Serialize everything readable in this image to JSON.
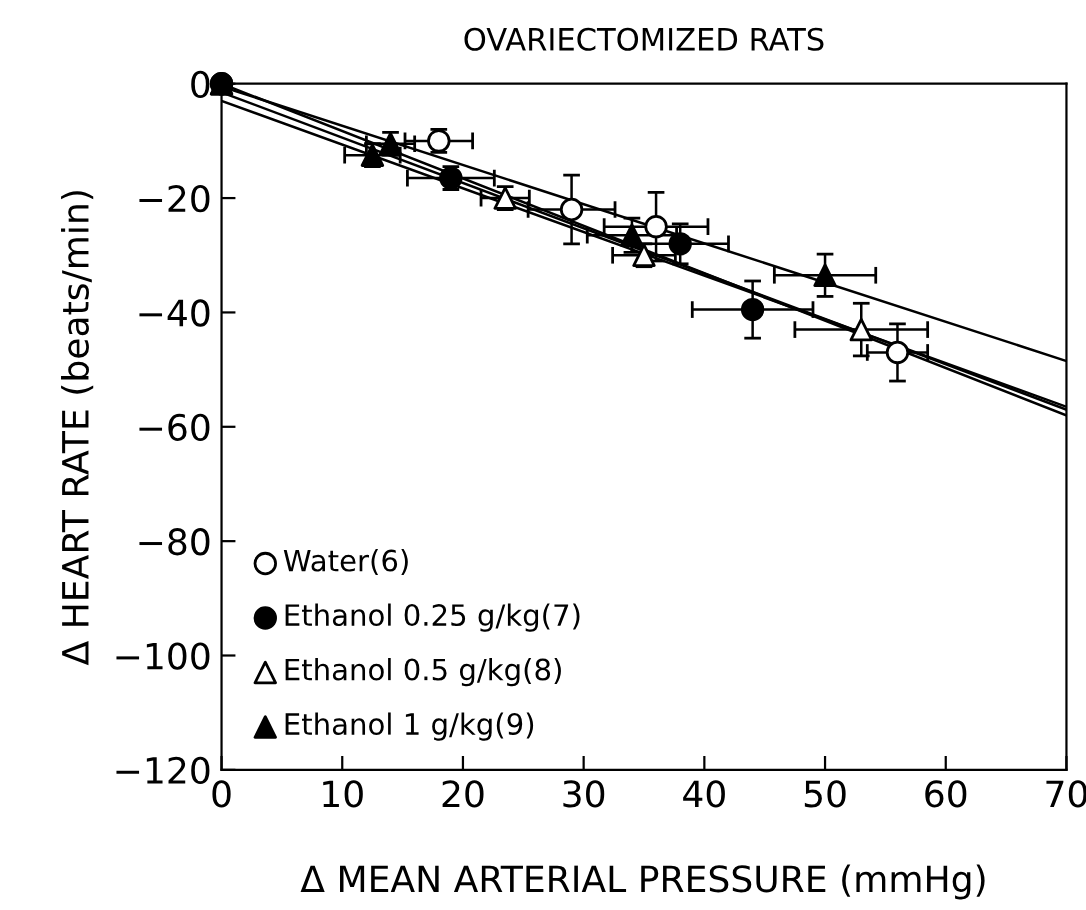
{
  "chart_data": {
    "type": "scatter",
    "title": "OVARIECTOMIZED RATS",
    "xlabel": "Δ MEAN ARTERIAL PRESSURE (mmHg)",
    "ylabel": "Δ HEART RATE (beats/min)",
    "xlim": [
      0,
      70
    ],
    "ylim": [
      -120,
      0
    ],
    "xticks": [
      0,
      10,
      20,
      30,
      40,
      50,
      60,
      70
    ],
    "yticks": [
      -120,
      -100,
      -80,
      -60,
      -40,
      -20,
      0
    ],
    "grid": false,
    "legend": "bottom left",
    "series": [
      {
        "name": "Water(6)",
        "marker": "circle",
        "color": "#ffffff",
        "x": [
          0,
          18,
          29,
          36,
          56
        ],
        "values": [
          0,
          -10,
          -22,
          -25,
          -47
        ],
        "xerrors": [
          null,
          2.8,
          3.6,
          4.3,
          2.5
        ],
        "errors": [
          null,
          2,
          6,
          6,
          5
        ]
      },
      {
        "name": "Ethanol 0.25 g/kg(7)",
        "marker": "circle",
        "color": "#000000",
        "x": [
          0,
          19,
          38,
          44
        ],
        "values": [
          0,
          -16.5,
          -28,
          -39.5
        ],
        "xerrors": [
          null,
          3.6,
          4,
          5
        ],
        "errors": [
          null,
          2,
          3.5,
          5
        ]
      },
      {
        "name": "Ethanol 0.5 g/kg(8)",
        "marker": "triangle",
        "color": "#ffffff",
        "x": [
          0,
          23.5,
          35,
          53
        ],
        "values": [
          0,
          -20,
          -30,
          -43
        ],
        "xerrors": [
          null,
          2,
          2.6,
          5.5
        ],
        "errors": [
          null,
          2,
          2,
          4.6
        ]
      },
      {
        "name": "Ethanol 1 g/kg(9)",
        "marker": "triangle",
        "color": "#000000",
        "x": [
          0,
          14,
          12.5,
          34,
          50
        ],
        "values": [
          0,
          -10.5,
          -12.5,
          -26.5,
          -33.5
        ],
        "xerrors": [
          null,
          2,
          2.3,
          3.7,
          4.2
        ],
        "errors": [
          null,
          2,
          2,
          3,
          3.7
        ]
      },
      {
        "type": "line",
        "color": "#000000",
        "x": [
          0,
          70
        ],
        "values": [
          0,
          -58
        ]
      },
      {
        "type": "line",
        "color": "#000000",
        "x": [
          0,
          70
        ],
        "values": [
          -1.5,
          -57
        ]
      },
      {
        "type": "line",
        "color": "#000000",
        "x": [
          0,
          70
        ],
        "values": [
          -3,
          -56.5
        ]
      },
      {
        "type": "line",
        "color": "#000000",
        "x": [
          0,
          70
        ],
        "values": [
          -0.5,
          -48.5
        ]
      }
    ]
  }
}
